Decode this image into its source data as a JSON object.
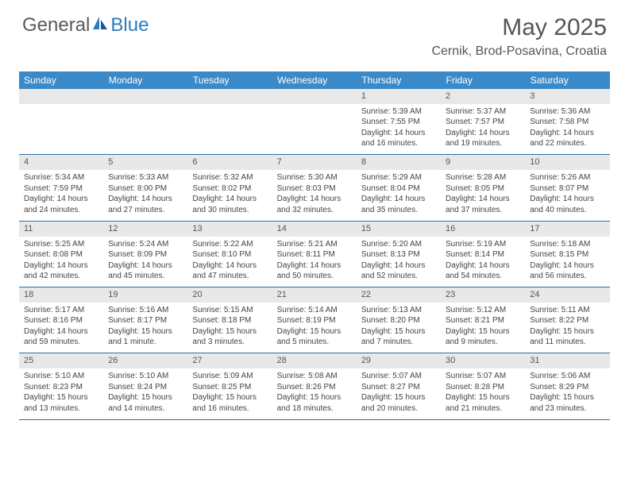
{
  "logo": {
    "general": "General",
    "blue": "Blue"
  },
  "title": "May 2025",
  "location": "Cernik, Brod-Posavina, Croatia",
  "colors": {
    "header_bg": "#3a8ac9",
    "header_text": "#ffffff",
    "daynum_bg": "#e8e8e8",
    "row_border": "#2f6fa6",
    "text": "#444444",
    "logo_blue": "#2b7bbf"
  },
  "weekdays": [
    "Sunday",
    "Monday",
    "Tuesday",
    "Wednesday",
    "Thursday",
    "Friday",
    "Saturday"
  ],
  "weeks": [
    [
      null,
      null,
      null,
      null,
      {
        "n": "1",
        "sr": "Sunrise: 5:39 AM",
        "ss": "Sunset: 7:55 PM",
        "d1": "Daylight: 14 hours",
        "d2": "and 16 minutes."
      },
      {
        "n": "2",
        "sr": "Sunrise: 5:37 AM",
        "ss": "Sunset: 7:57 PM",
        "d1": "Daylight: 14 hours",
        "d2": "and 19 minutes."
      },
      {
        "n": "3",
        "sr": "Sunrise: 5:36 AM",
        "ss": "Sunset: 7:58 PM",
        "d1": "Daylight: 14 hours",
        "d2": "and 22 minutes."
      }
    ],
    [
      {
        "n": "4",
        "sr": "Sunrise: 5:34 AM",
        "ss": "Sunset: 7:59 PM",
        "d1": "Daylight: 14 hours",
        "d2": "and 24 minutes."
      },
      {
        "n": "5",
        "sr": "Sunrise: 5:33 AM",
        "ss": "Sunset: 8:00 PM",
        "d1": "Daylight: 14 hours",
        "d2": "and 27 minutes."
      },
      {
        "n": "6",
        "sr": "Sunrise: 5:32 AM",
        "ss": "Sunset: 8:02 PM",
        "d1": "Daylight: 14 hours",
        "d2": "and 30 minutes."
      },
      {
        "n": "7",
        "sr": "Sunrise: 5:30 AM",
        "ss": "Sunset: 8:03 PM",
        "d1": "Daylight: 14 hours",
        "d2": "and 32 minutes."
      },
      {
        "n": "8",
        "sr": "Sunrise: 5:29 AM",
        "ss": "Sunset: 8:04 PM",
        "d1": "Daylight: 14 hours",
        "d2": "and 35 minutes."
      },
      {
        "n": "9",
        "sr": "Sunrise: 5:28 AM",
        "ss": "Sunset: 8:05 PM",
        "d1": "Daylight: 14 hours",
        "d2": "and 37 minutes."
      },
      {
        "n": "10",
        "sr": "Sunrise: 5:26 AM",
        "ss": "Sunset: 8:07 PM",
        "d1": "Daylight: 14 hours",
        "d2": "and 40 minutes."
      }
    ],
    [
      {
        "n": "11",
        "sr": "Sunrise: 5:25 AM",
        "ss": "Sunset: 8:08 PM",
        "d1": "Daylight: 14 hours",
        "d2": "and 42 minutes."
      },
      {
        "n": "12",
        "sr": "Sunrise: 5:24 AM",
        "ss": "Sunset: 8:09 PM",
        "d1": "Daylight: 14 hours",
        "d2": "and 45 minutes."
      },
      {
        "n": "13",
        "sr": "Sunrise: 5:22 AM",
        "ss": "Sunset: 8:10 PM",
        "d1": "Daylight: 14 hours",
        "d2": "and 47 minutes."
      },
      {
        "n": "14",
        "sr": "Sunrise: 5:21 AM",
        "ss": "Sunset: 8:11 PM",
        "d1": "Daylight: 14 hours",
        "d2": "and 50 minutes."
      },
      {
        "n": "15",
        "sr": "Sunrise: 5:20 AM",
        "ss": "Sunset: 8:13 PM",
        "d1": "Daylight: 14 hours",
        "d2": "and 52 minutes."
      },
      {
        "n": "16",
        "sr": "Sunrise: 5:19 AM",
        "ss": "Sunset: 8:14 PM",
        "d1": "Daylight: 14 hours",
        "d2": "and 54 minutes."
      },
      {
        "n": "17",
        "sr": "Sunrise: 5:18 AM",
        "ss": "Sunset: 8:15 PM",
        "d1": "Daylight: 14 hours",
        "d2": "and 56 minutes."
      }
    ],
    [
      {
        "n": "18",
        "sr": "Sunrise: 5:17 AM",
        "ss": "Sunset: 8:16 PM",
        "d1": "Daylight: 14 hours",
        "d2": "and 59 minutes."
      },
      {
        "n": "19",
        "sr": "Sunrise: 5:16 AM",
        "ss": "Sunset: 8:17 PM",
        "d1": "Daylight: 15 hours",
        "d2": "and 1 minute."
      },
      {
        "n": "20",
        "sr": "Sunrise: 5:15 AM",
        "ss": "Sunset: 8:18 PM",
        "d1": "Daylight: 15 hours",
        "d2": "and 3 minutes."
      },
      {
        "n": "21",
        "sr": "Sunrise: 5:14 AM",
        "ss": "Sunset: 8:19 PM",
        "d1": "Daylight: 15 hours",
        "d2": "and 5 minutes."
      },
      {
        "n": "22",
        "sr": "Sunrise: 5:13 AM",
        "ss": "Sunset: 8:20 PM",
        "d1": "Daylight: 15 hours",
        "d2": "and 7 minutes."
      },
      {
        "n": "23",
        "sr": "Sunrise: 5:12 AM",
        "ss": "Sunset: 8:21 PM",
        "d1": "Daylight: 15 hours",
        "d2": "and 9 minutes."
      },
      {
        "n": "24",
        "sr": "Sunrise: 5:11 AM",
        "ss": "Sunset: 8:22 PM",
        "d1": "Daylight: 15 hours",
        "d2": "and 11 minutes."
      }
    ],
    [
      {
        "n": "25",
        "sr": "Sunrise: 5:10 AM",
        "ss": "Sunset: 8:23 PM",
        "d1": "Daylight: 15 hours",
        "d2": "and 13 minutes."
      },
      {
        "n": "26",
        "sr": "Sunrise: 5:10 AM",
        "ss": "Sunset: 8:24 PM",
        "d1": "Daylight: 15 hours",
        "d2": "and 14 minutes."
      },
      {
        "n": "27",
        "sr": "Sunrise: 5:09 AM",
        "ss": "Sunset: 8:25 PM",
        "d1": "Daylight: 15 hours",
        "d2": "and 16 minutes."
      },
      {
        "n": "28",
        "sr": "Sunrise: 5:08 AM",
        "ss": "Sunset: 8:26 PM",
        "d1": "Daylight: 15 hours",
        "d2": "and 18 minutes."
      },
      {
        "n": "29",
        "sr": "Sunrise: 5:07 AM",
        "ss": "Sunset: 8:27 PM",
        "d1": "Daylight: 15 hours",
        "d2": "and 20 minutes."
      },
      {
        "n": "30",
        "sr": "Sunrise: 5:07 AM",
        "ss": "Sunset: 8:28 PM",
        "d1": "Daylight: 15 hours",
        "d2": "and 21 minutes."
      },
      {
        "n": "31",
        "sr": "Sunrise: 5:06 AM",
        "ss": "Sunset: 8:29 PM",
        "d1": "Daylight: 15 hours",
        "d2": "and 23 minutes."
      }
    ]
  ]
}
